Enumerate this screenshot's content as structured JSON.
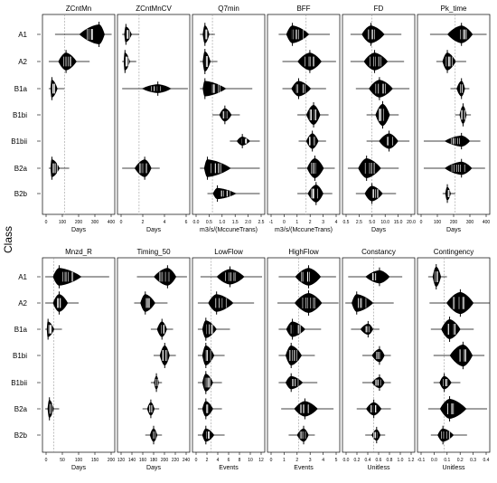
{
  "y_axis_label": "Class",
  "classes": [
    "A1",
    "A2",
    "B1a",
    "B1bi",
    "B1bii",
    "B2a",
    "B2b"
  ],
  "colors": {
    "fill": "#000000",
    "median": "#ffffff",
    "ref_line": "#999999",
    "frame": "#000000"
  },
  "chart_data": [
    {
      "type": "bean",
      "title": "ZCntMn",
      "xlabel": "Days",
      "ticks": [
        "0",
        "100",
        "200",
        "300",
        "400"
      ],
      "xlim": [
        -40,
        420
      ],
      "ref": 100,
      "medians": [
        320,
        110,
        20,
        null,
        null,
        20,
        null
      ],
      "ranges": [
        [
          40,
          400
        ],
        [
          0,
          260
        ],
        [
          0,
          100
        ],
        null,
        null,
        [
          0,
          130
        ],
        null
      ],
      "widths": [
        0.9,
        0.8,
        0.8,
        0,
        0,
        0.8,
        0
      ]
    },
    {
      "type": "bean",
      "title": "ZCntMnCV",
      "xlabel": "Days",
      "ticks": [
        "0",
        "2",
        "4",
        "6"
      ],
      "xlim": [
        -0.5,
        7.2
      ],
      "ref": 1.8,
      "medians": [
        0.4,
        0.3,
        3.8,
        null,
        null,
        2.4,
        null
      ],
      "ranges": [
        [
          0,
          1.8
        ],
        [
          0,
          1.5
        ],
        [
          0,
          7.0
        ],
        null,
        null,
        [
          0,
          4.0
        ],
        null
      ],
      "widths": [
        0.7,
        0.8,
        0.4,
        0,
        0,
        0.8,
        0
      ]
    },
    {
      "type": "bean",
      "title": "Q7min",
      "xlabel": "m3/s/(MccuneTrans)",
      "ticks": [
        "0.0",
        "0.5",
        "1.0",
        "1.5",
        "2.0",
        "2.5"
      ],
      "xlim": [
        -0.3,
        2.6
      ],
      "ref": 0.5,
      "medians": [
        0.2,
        0.2,
        0.2,
        1.0,
        1.7,
        0.3,
        0.7
      ],
      "ranges": [
        [
          0,
          0.6
        ],
        [
          0,
          0.7
        ],
        [
          0,
          2.1
        ],
        [
          0.5,
          1.6
        ],
        [
          1.2,
          2.4
        ],
        [
          0,
          2.4
        ],
        [
          0.3,
          2.4
        ]
      ],
      "widths": [
        0.8,
        0.9,
        0.7,
        0.6,
        0.4,
        0.8,
        0.5
      ]
    },
    {
      "type": "bean",
      "title": "BFF",
      "xlabel": "m3/s/(MccuneTrans)",
      "ticks": [
        "-1",
        "0",
        "1",
        "2",
        "3",
        "4"
      ],
      "xlim": [
        -1.2,
        4.6
      ],
      "ref": 1.9,
      "medians": [
        0.8,
        2.2,
        1.3,
        2.5,
        2.4,
        2.6,
        2.7
      ],
      "ranges": [
        [
          -0.3,
          3.8
        ],
        [
          0,
          4.3
        ],
        [
          0,
          3.5
        ],
        [
          1.2,
          3.7
        ],
        [
          1.3,
          3.5
        ],
        [
          1.2,
          4.2
        ],
        [
          1.2,
          4.0
        ]
      ],
      "widths": [
        0.8,
        0.8,
        0.7,
        0.9,
        0.7,
        0.9,
        0.8
      ]
    },
    {
      "type": "bean",
      "title": "FD",
      "xlabel": "Days",
      "ticks": [
        "0.5",
        "2.5",
        "5.0",
        "10.0",
        "15.0",
        "20.0"
      ],
      "xlim": [
        -0.5,
        13.0
      ],
      "ref": 5.0,
      "medians": [
        4.8,
        5.5,
        6.4,
        7.0,
        8.2,
        4.0,
        5.0
      ],
      "ranges": [
        [
          1.0,
          10.5
        ],
        [
          1.0,
          11.0
        ],
        [
          2.0,
          12.0
        ],
        [
          4.0,
          10.0
        ],
        [
          4.0,
          12.0
        ],
        [
          0.5,
          10.0
        ],
        [
          2.0,
          9.5
        ]
      ],
      "widths": [
        0.8,
        0.8,
        0.8,
        1.0,
        0.7,
        0.9,
        0.7
      ]
    },
    {
      "type": "bean",
      "title": "Pk_time",
      "xlabel": "Days",
      "ticks": [
        "0",
        "100",
        "200",
        "300",
        "400"
      ],
      "xlim": [
        -40,
        420
      ],
      "ref": 200,
      "medians": [
        240,
        150,
        240,
        250,
        240,
        240,
        150
      ],
      "ranges": [
        [
          40,
          400
        ],
        [
          80,
          270
        ],
        [
          170,
          290
        ],
        [
          200,
          300
        ],
        [
          0,
          360
        ],
        [
          0,
          390
        ],
        [
          120,
          200
        ]
      ],
      "widths": [
        0.8,
        0.8,
        0.7,
        0.8,
        0.5,
        0.6,
        0.6
      ]
    },
    {
      "type": "bean",
      "title": "Mnzd_R",
      "xlabel": "Days",
      "ticks": [
        "0",
        "50",
        "100",
        "150",
        "200"
      ],
      "xlim": [
        -10,
        250
      ],
      "ref": 30,
      "medians": [
        50,
        50,
        10,
        null,
        null,
        15,
        null
      ],
      "ranges": [
        [
          0,
          230
        ],
        [
          0,
          120
        ],
        [
          0,
          60
        ],
        null,
        null,
        [
          0,
          50
        ],
        null
      ],
      "widths": [
        0.8,
        0.8,
        0.7,
        0,
        0,
        0.8,
        0
      ]
    },
    {
      "type": "bean",
      "title": "Timing_50",
      "xlabel": "Days",
      "ticks": [
        "120",
        "140",
        "160",
        "180",
        "200",
        "220",
        "240"
      ],
      "xlim": [
        125,
        255
      ],
      "ref": null,
      "medians": [
        215,
        175,
        205,
        210,
        195,
        185,
        190
      ],
      "ranges": [
        [
          160,
          250
        ],
        [
          155,
          215
        ],
        [
          185,
          225
        ],
        [
          190,
          230
        ],
        [
          185,
          205
        ],
        [
          170,
          200
        ],
        [
          175,
          205
        ]
      ],
      "widths": [
        0.8,
        0.8,
        0.7,
        0.9,
        0.6,
        0.6,
        0.6
      ]
    },
    {
      "type": "bean",
      "title": "LowFlow",
      "xlabel": "Events",
      "ticks": [
        "0",
        "2",
        "4",
        "6",
        "8",
        "10",
        "12"
      ],
      "xlim": [
        -0.5,
        13.0
      ],
      "ref": 3.0,
      "medians": [
        6.5,
        4.0,
        2.0,
        2.0,
        2.0,
        2.0,
        2.0
      ],
      "ranges": [
        [
          1,
          12.5
        ],
        [
          0.5,
          11.0
        ],
        [
          0.5,
          6.5
        ],
        [
          0.5,
          5.5
        ],
        [
          0.5,
          5.0
        ],
        [
          0.5,
          5.0
        ],
        [
          0.5,
          5.5
        ]
      ],
      "widths": [
        0.7,
        0.8,
        0.8,
        0.9,
        0.8,
        0.7,
        0.6
      ]
    },
    {
      "type": "bean",
      "title": "HighFlow",
      "xlabel": "Events",
      "ticks": [
        "0",
        "1",
        "2",
        "3",
        "4",
        "5"
      ],
      "xlim": [
        -0.5,
        5.3
      ],
      "ref": 2.0,
      "medians": [
        2.8,
        2.8,
        1.5,
        1.4,
        1.4,
        2.5,
        2.4
      ],
      "ranges": [
        [
          0.4,
          5.0
        ],
        [
          0.3,
          5.2
        ],
        [
          0.4,
          3.8
        ],
        [
          0.4,
          3.3
        ],
        [
          0.4,
          3.5
        ],
        [
          0.6,
          4.8
        ],
        [
          1.2,
          3.3
        ]
      ],
      "widths": [
        0.8,
        0.9,
        0.7,
        0.9,
        0.6,
        0.7,
        0.6
      ]
    },
    {
      "type": "bean",
      "title": "Constancy",
      "xlabel": "Unitless",
      "ticks": [
        "0.0",
        "0.2",
        "0.4",
        "0.6",
        "0.8",
        "1.0",
        "1.2"
      ],
      "xlim": [
        -0.05,
        1.22
      ],
      "ref": 0.5,
      "medians": [
        0.6,
        0.2,
        0.4,
        0.6,
        0.6,
        0.5,
        0.55
      ],
      "ranges": [
        [
          0.05,
          1.0
        ],
        [
          0.0,
          0.85
        ],
        [
          0.1,
          0.6
        ],
        [
          0.3,
          0.8
        ],
        [
          0.3,
          0.8
        ],
        [
          0.2,
          0.8
        ],
        [
          0.35,
          0.7
        ]
      ],
      "widths": [
        0.6,
        0.8,
        0.5,
        0.6,
        0.5,
        0.6,
        0.5
      ]
    },
    {
      "type": "bean",
      "title": "Contingency",
      "xlabel": "Unitless",
      "ticks": [
        "-0.1",
        "0.0",
        "0.1",
        "0.2",
        "0.3",
        "0.4"
      ],
      "xlim": [
        -0.12,
        0.42
      ],
      "ref": 0.08,
      "medians": [
        0.02,
        0.2,
        0.12,
        0.22,
        0.08,
        0.12,
        0.07
      ],
      "ranges": [
        [
          -0.04,
          0.1
        ],
        [
          -0.03,
          0.42
        ],
        [
          -0.02,
          0.3
        ],
        [
          0.0,
          0.38
        ],
        [
          0.0,
          0.2
        ],
        [
          -0.04,
          0.4
        ],
        [
          -0.02,
          0.25
        ]
      ],
      "widths": [
        0.9,
        1.0,
        0.9,
        1.0,
        0.6,
        0.9,
        0.6
      ]
    }
  ]
}
